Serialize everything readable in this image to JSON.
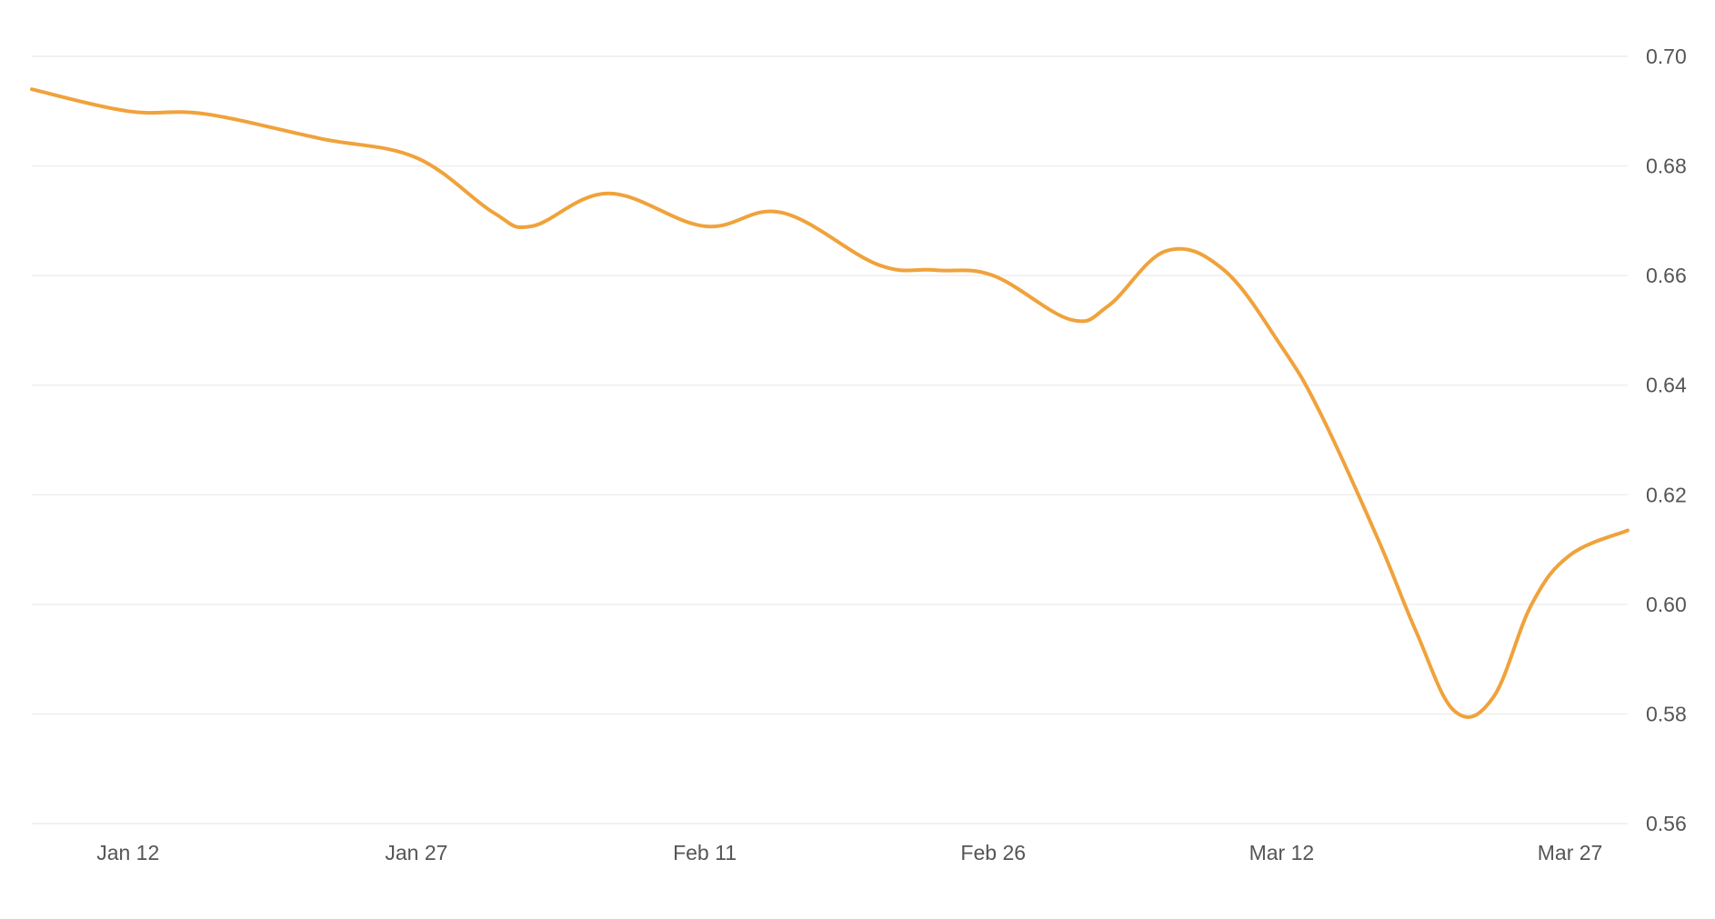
{
  "chart_data": {
    "type": "line",
    "title": "",
    "xlabel": "",
    "ylabel": "",
    "x_ticks": [
      {
        "date": "2024-01-12",
        "label": "Jan 12"
      },
      {
        "date": "2024-01-27",
        "label": "Jan 27"
      },
      {
        "date": "2024-02-11",
        "label": "Feb 11"
      },
      {
        "date": "2024-02-26",
        "label": "Feb 26"
      },
      {
        "date": "2024-03-12",
        "label": "Mar 12"
      },
      {
        "date": "2024-03-27",
        "label": "Mar 27"
      }
    ],
    "y_ticks": [
      "0.56",
      "0.58",
      "0.60",
      "0.62",
      "0.64",
      "0.66",
      "0.68",
      "0.70"
    ],
    "ylim": [
      0.56,
      0.7
    ],
    "xlim": [
      "2024-01-07",
      "2024-03-30"
    ],
    "grid": "horizontal",
    "y_axis_position": "right",
    "line_color": "#f0a23b",
    "grid_color": "#ebebeb",
    "series": [
      {
        "points": [
          {
            "x": "2024-01-07",
            "y": 0.694
          },
          {
            "x": "2024-01-12",
            "y": 0.69
          },
          {
            "x": "2024-01-16",
            "y": 0.6895
          },
          {
            "x": "2024-01-22",
            "y": 0.685
          },
          {
            "x": "2024-01-27",
            "y": 0.6815
          },
          {
            "x": "2024-01-31",
            "y": 0.6715
          },
          {
            "x": "2024-02-02",
            "y": 0.669
          },
          {
            "x": "2024-02-06",
            "y": 0.675
          },
          {
            "x": "2024-02-11",
            "y": 0.669
          },
          {
            "x": "2024-02-15",
            "y": 0.6715
          },
          {
            "x": "2024-02-20",
            "y": 0.662
          },
          {
            "x": "2024-02-23",
            "y": 0.661
          },
          {
            "x": "2024-02-26",
            "y": 0.66
          },
          {
            "x": "2024-03-01",
            "y": 0.652
          },
          {
            "x": "2024-03-03",
            "y": 0.6545
          },
          {
            "x": "2024-03-06",
            "y": 0.6645
          },
          {
            "x": "2024-03-09",
            "y": 0.661
          },
          {
            "x": "2024-03-12",
            "y": 0.647
          },
          {
            "x": "2024-03-14",
            "y": 0.635
          },
          {
            "x": "2024-03-17",
            "y": 0.612
          },
          {
            "x": "2024-03-19",
            "y": 0.595
          },
          {
            "x": "2024-03-21",
            "y": 0.5805
          },
          {
            "x": "2024-03-23",
            "y": 0.583
          },
          {
            "x": "2024-03-25",
            "y": 0.6
          },
          {
            "x": "2024-03-27",
            "y": 0.609
          },
          {
            "x": "2024-03-30",
            "y": 0.6135
          }
        ]
      }
    ]
  }
}
